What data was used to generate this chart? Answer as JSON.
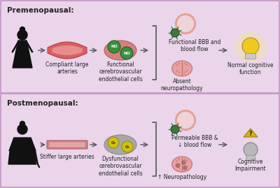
{
  "top_bg": "#ead5ea",
  "bottom_bg": "#ead5ea",
  "panel_border": "#c090c0",
  "outer_bg": "#d4b8d4",
  "top_label": "Premenopausal:",
  "bottom_label": "Postmenopausal:",
  "top_labels": [
    "Compliant large\narteries",
    "Functional\ncerebrovascular\nendothelial cells",
    "Functional BBB and\nblood flow",
    "Absent\nneuropathology",
    "Normal cognitive\nfunction"
  ],
  "bottom_labels": [
    "Stiffer large arteries",
    "Dysfunctional\ncerebrovascular\nendothelial cells",
    "Permeable BBB &\n↓ blood flow",
    "↑ Neuropathology",
    "Cognitive\nImpairment"
  ],
  "artery_outer_top": "#d96060",
  "artery_inner_top": "#f0a0a0",
  "artery_outer_bot": "#d08080",
  "artery_inner_bot": "#f0c0c0",
  "cell_blob_top": "#d88080",
  "cell_blob_bot": "#a8a8a8",
  "no_green": "#3a9040",
  "o2_yellow": "#d4c010",
  "brain_pink": "#e8a0a0",
  "brain_dark": "#c07070",
  "brain_spot": "#a06060",
  "neuron_green": "#3a7a3a",
  "ring_pink": "#e8a090",
  "ring_fill": "#f5d0c0",
  "bulb_yellow": "#f0c820",
  "bulb_gray": "#b8b8b8",
  "bulb_base": "#c0c0c0",
  "warn_yellow": "#d4b010",
  "arrow_col": "#555555",
  "text_col": "#222222",
  "lfs": 5.5,
  "tfs": 7.5
}
